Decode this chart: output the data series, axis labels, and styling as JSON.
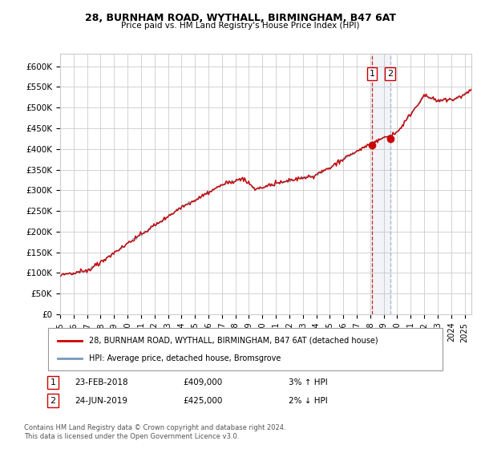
{
  "title1": "28, BURNHAM ROAD, WYTHALL, BIRMINGHAM, B47 6AT",
  "title2": "Price paid vs. HM Land Registry's House Price Index (HPI)",
  "ylabel_ticks": [
    "£0",
    "£50K",
    "£100K",
    "£150K",
    "£200K",
    "£250K",
    "£300K",
    "£350K",
    "£400K",
    "£450K",
    "£500K",
    "£550K",
    "£600K"
  ],
  "ytick_values": [
    0,
    50000,
    100000,
    150000,
    200000,
    250000,
    300000,
    350000,
    400000,
    450000,
    500000,
    550000,
    600000
  ],
  "ylim": [
    0,
    630000
  ],
  "xtick_years": [
    1995,
    1996,
    1997,
    1998,
    1999,
    2000,
    2001,
    2002,
    2003,
    2004,
    2005,
    2006,
    2007,
    2008,
    2009,
    2010,
    2011,
    2012,
    2013,
    2014,
    2015,
    2016,
    2017,
    2018,
    2019,
    2020,
    2021,
    2022,
    2023,
    2024,
    2025
  ],
  "legend_line1": "28, BURNHAM ROAD, WYTHALL, BIRMINGHAM, B47 6AT (detached house)",
  "legend_line2": "HPI: Average price, detached house, Bromsgrove",
  "line1_color": "#cc0000",
  "line2_color": "#7799bb",
  "transaction1_date": "23-FEB-2018",
  "transaction1_price": 409000,
  "transaction1_year": 2018.12,
  "transaction1_label": "£409,000",
  "transaction1_hpi": "3% ↑ HPI",
  "transaction2_date": "24-JUN-2019",
  "transaction2_price": 425000,
  "transaction2_year": 2019.48,
  "transaction2_label": "£425,000",
  "transaction2_hpi": "2% ↓ HPI",
  "vline1_color": "#cc0000",
  "vline2_color": "#99aacc",
  "footnote": "Contains HM Land Registry data © Crown copyright and database right 2024.\nThis data is licensed under the Open Government Licence v3.0.",
  "bg_color": "#ffffff",
  "grid_color": "#cccccc"
}
